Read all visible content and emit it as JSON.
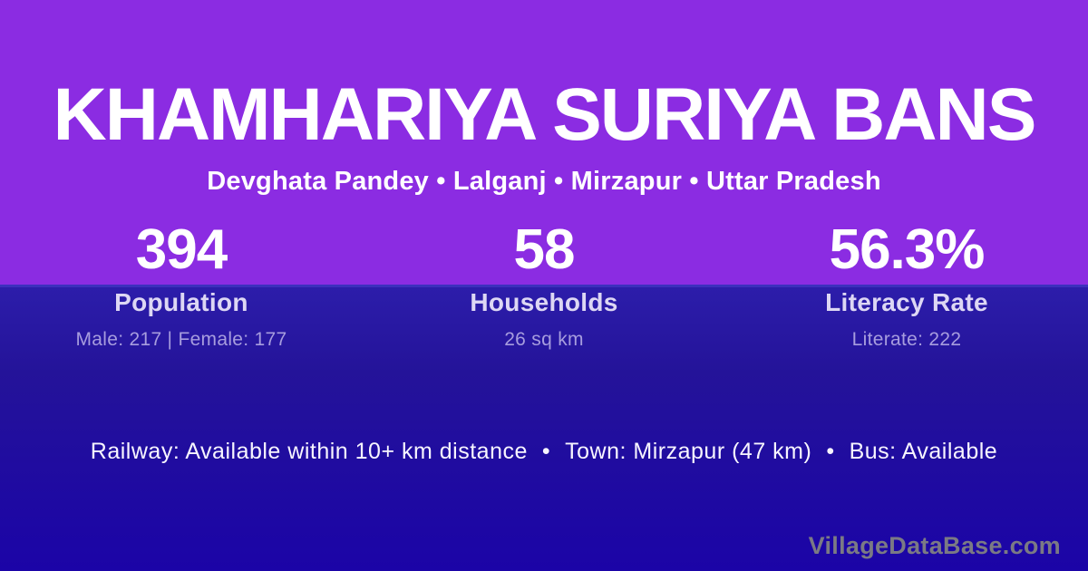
{
  "village_card": {
    "title": "KHAMHARIYA SURIYA BANS",
    "breadcrumb": "Devghata Pandey • Lalganj • Mirzapur • Uttar Pradesh",
    "stats": [
      {
        "value": "394",
        "label": "Population",
        "sub": "Male: 217 | Female: 177"
      },
      {
        "value": "58",
        "label": "Households",
        "sub": "26 sq km"
      },
      {
        "value": "56.3%",
        "label": "Literacy Rate",
        "sub": "Literate: 222"
      }
    ],
    "transport": {
      "separator": "•",
      "segments": [
        "Railway: Available within 10+ km distance",
        "Town: Mirzapur (47 km)",
        "Bus: Available"
      ]
    },
    "watermark": "VillageDataBase.com",
    "colors": {
      "top_background": "#8b2ce2",
      "bottom_background_start": "#2c1daa",
      "bottom_background_end": "#1b04a7",
      "divider": "#3c30bd",
      "title_text": "#ffffff",
      "stat_label_text": "#ddd7f4",
      "stat_sub_text": "#a79dde",
      "watermark_text": "#7b7a84"
    }
  }
}
